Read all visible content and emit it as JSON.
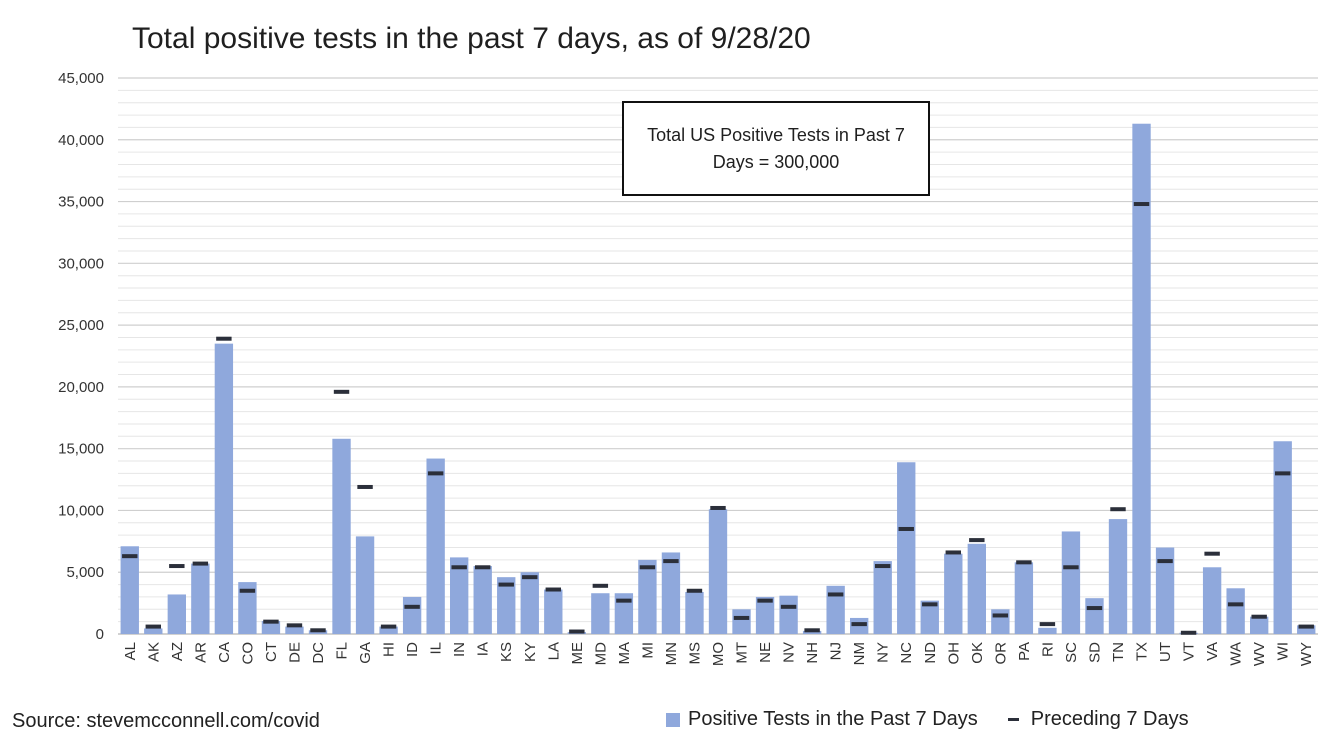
{
  "chart_data": {
    "type": "bar",
    "title": "Total positive tests in the past 7 days, as of 9/28/20",
    "xlabel": "",
    "ylabel": "",
    "ylim": [
      0,
      45000
    ],
    "yticks": [
      0,
      5000,
      10000,
      15000,
      20000,
      25000,
      30000,
      35000,
      40000,
      45000
    ],
    "ytick_labels": [
      "0",
      "5,000",
      "10,000",
      "15,000",
      "20,000",
      "25,000",
      "30,000",
      "35,000",
      "40,000",
      "45,000"
    ],
    "grid": true,
    "legend_position": "bottom-right",
    "categories": [
      "AL",
      "AK",
      "AZ",
      "AR",
      "CA",
      "CO",
      "CT",
      "DE",
      "DC",
      "FL",
      "GA",
      "HI",
      "ID",
      "IL",
      "IN",
      "IA",
      "KS",
      "KY",
      "LA",
      "ME",
      "MD",
      "MA",
      "MI",
      "MN",
      "MS",
      "MO",
      "MT",
      "NE",
      "NV",
      "NH",
      "NJ",
      "NM",
      "NY",
      "NC",
      "ND",
      "OH",
      "OK",
      "OR",
      "PA",
      "RI",
      "SC",
      "SD",
      "TN",
      "TX",
      "UT",
      "VT",
      "VA",
      "WA",
      "WV",
      "WI",
      "WY"
    ],
    "series": [
      {
        "name": "Positive Tests in the Past 7 Days",
        "kind": "bar",
        "color": "#8fa8dc",
        "values": [
          7100,
          450,
          3200,
          5700,
          23500,
          4200,
          1050,
          600,
          300,
          15800,
          7900,
          600,
          3000,
          14200,
          6200,
          5500,
          4600,
          5000,
          3600,
          150,
          3300,
          3300,
          6000,
          6600,
          3400,
          10100,
          2000,
          3000,
          3100,
          250,
          3900,
          1300,
          5900,
          13900,
          2700,
          6500,
          7300,
          2000,
          5800,
          500,
          8300,
          2900,
          9300,
          41300,
          7000,
          100,
          5400,
          3700,
          1400,
          15600,
          700
        ]
      },
      {
        "name": "Preceding 7 Days",
        "kind": "marker",
        "color": "#2b2f3a",
        "values": [
          6300,
          600,
          5500,
          5700,
          23900,
          3500,
          1000,
          700,
          300,
          19600,
          11900,
          600,
          2200,
          13000,
          5400,
          5400,
          4000,
          4600,
          3600,
          200,
          3900,
          2700,
          5400,
          5900,
          3500,
          10200,
          1300,
          2700,
          2200,
          300,
          3200,
          800,
          5500,
          8500,
          2400,
          6600,
          7600,
          1500,
          5800,
          800,
          5400,
          2100,
          10100,
          34800,
          5900,
          100,
          6500,
          2400,
          1400,
          13000,
          600
        ]
      }
    ],
    "annotation": "Total US Positive Tests in Past 7 Days = 300,000",
    "source": "Source: stevemcconnell.com/covid"
  }
}
